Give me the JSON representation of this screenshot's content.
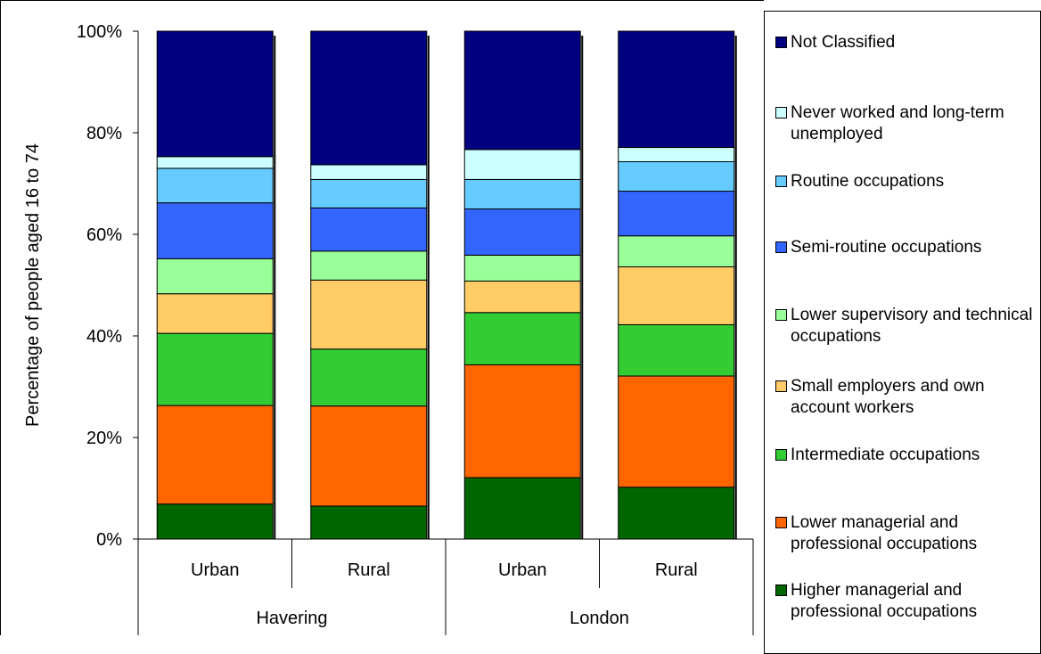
{
  "chart_data": {
    "type": "bar",
    "stacked": "percent",
    "ylabel": "Percentage of people aged 16 to 74",
    "ylim": [
      0,
      100
    ],
    "yticks": [
      "0%",
      "20%",
      "40%",
      "60%",
      "80%",
      "100%"
    ],
    "categories": [
      "Urban",
      "Rural",
      "Urban",
      "Rural"
    ],
    "groups": [
      {
        "label": "Havering",
        "categories": [
          "Urban",
          "Rural"
        ]
      },
      {
        "label": "London",
        "categories": [
          "Urban",
          "Rural"
        ]
      }
    ],
    "legend_position": "right",
    "series": [
      {
        "name": "Higher managerial and professional occupations",
        "color": "#006600",
        "values": [
          6.9,
          6.5,
          12.1,
          10.2
        ]
      },
      {
        "name": "Lower managerial and professional occupations",
        "color": "#FF6600",
        "values": [
          19.4,
          19.7,
          22.2,
          21.9
        ]
      },
      {
        "name": "Intermediate occupations",
        "color": "#33CC33",
        "values": [
          14.2,
          11.2,
          10.3,
          10.1
        ]
      },
      {
        "name": "Small employers and own account workers",
        "color": "#FFCC66",
        "values": [
          7.8,
          13.6,
          6.2,
          11.4
        ]
      },
      {
        "name": "Lower supervisory and technical occupations",
        "color": "#99FF99",
        "values": [
          6.9,
          5.7,
          5.1,
          6.1
        ]
      },
      {
        "name": "Semi-routine occupations",
        "color": "#3366FF",
        "values": [
          11.0,
          8.5,
          9.1,
          8.8
        ]
      },
      {
        "name": "Routine occupations",
        "color": "#66CCFF",
        "values": [
          6.8,
          5.6,
          5.8,
          5.8
        ]
      },
      {
        "name": "Never worked and long-term unemployed",
        "color": "#CCFFFF",
        "values": [
          2.3,
          2.9,
          5.9,
          2.8
        ]
      },
      {
        "name": "Not Classified",
        "color": "#000080",
        "values": [
          24.7,
          26.3,
          23.3,
          22.9
        ]
      }
    ]
  }
}
